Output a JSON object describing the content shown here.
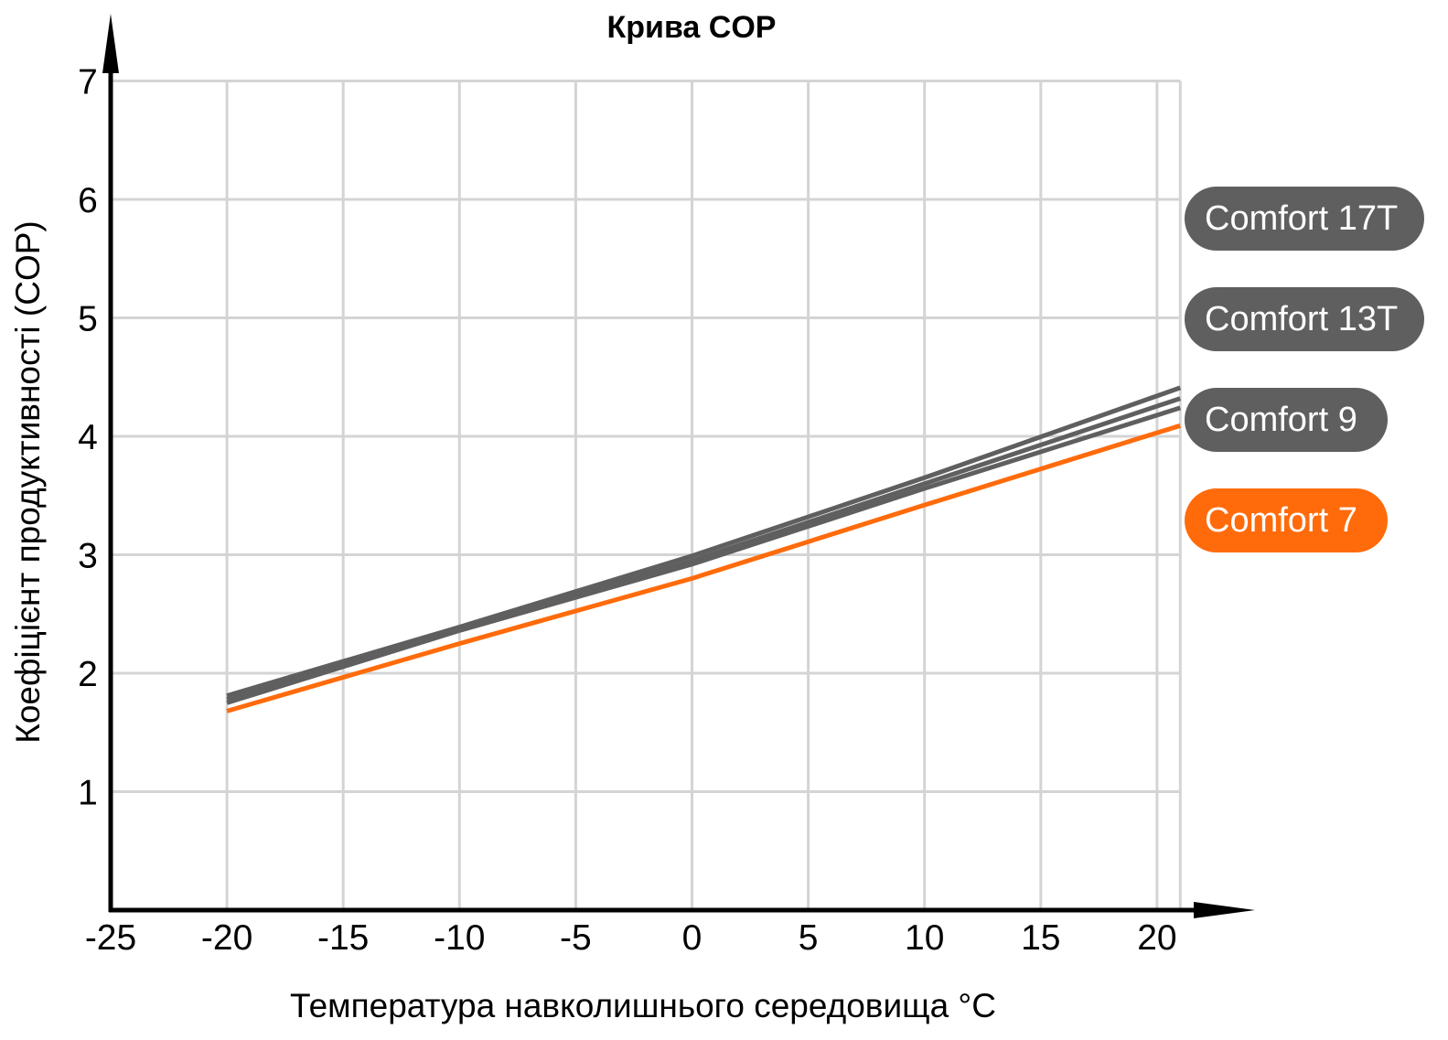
{
  "chart_data": {
    "type": "line",
    "title": "Крива COP",
    "xlabel": "Температура навколишнього середовища °C",
    "ylabel": "Коефіцієнт продуктивності (COP)",
    "xlim": [
      -25,
      21
    ],
    "ylim": [
      0,
      7
    ],
    "x_ticks": [
      "-25",
      "-20",
      "-15",
      "-10",
      "-5",
      "0",
      "5",
      "10",
      "15",
      "20"
    ],
    "y_ticks": [
      "1",
      "2",
      "3",
      "4",
      "5",
      "6",
      "7"
    ],
    "grid": true,
    "legend_position": "right",
    "series": [
      {
        "name": "Comfort 17T",
        "color": "#5f5f5f",
        "x": [
          -20,
          -10,
          0,
          10,
          21
        ],
        "y": [
          1.81,
          2.39,
          2.99,
          3.65,
          4.41
        ]
      },
      {
        "name": "Comfort 13T",
        "color": "#5f5f5f",
        "x": [
          -20,
          -10,
          0,
          10,
          21
        ],
        "y": [
          1.78,
          2.37,
          2.95,
          3.6,
          4.32
        ]
      },
      {
        "name": "Comfort 9",
        "color": "#5f5f5f",
        "x": [
          -20,
          -10,
          0,
          10,
          21
        ],
        "y": [
          1.75,
          2.36,
          2.92,
          3.56,
          4.24
        ]
      },
      {
        "name": "Comfort 7",
        "color": "#ff6b0b",
        "x": [
          -20,
          -10,
          0,
          10,
          21
        ],
        "y": [
          1.68,
          2.25,
          2.8,
          3.42,
          4.09
        ]
      }
    ]
  }
}
